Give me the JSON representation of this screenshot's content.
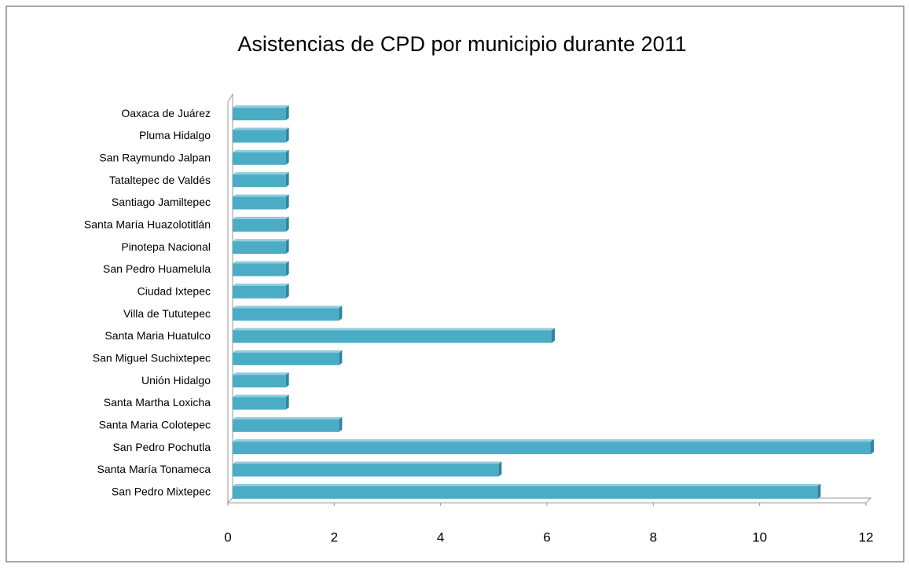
{
  "chart_data": {
    "type": "bar",
    "orientation": "horizontal",
    "title": "Asistencias de CPD por municipio durante 2011",
    "categories": [
      "Oaxaca de Juárez",
      "Pluma Hidalgo",
      "San Raymundo Jalpan",
      "Tataltepec de Valdés",
      "Santiago Jamiltepec",
      "Santa María Huazolotitlán",
      "Pinotepa Nacional",
      "San Pedro Huamelula",
      "Ciudad Ixtepec",
      "Villa de Tututepec",
      "Santa Maria Huatulco",
      "San Miguel Suchixtepec",
      "Unión Hidalgo",
      "Santa Martha Loxicha",
      "Santa Maria Colotepec",
      "San Pedro Pochutla",
      "Santa María Tonameca",
      "San Pedro Mixtepec"
    ],
    "values": [
      1,
      1,
      1,
      1,
      1,
      1,
      1,
      1,
      1,
      2,
      6,
      2,
      1,
      1,
      2,
      12,
      5,
      11
    ],
    "color": "#4bacc6",
    "xlim": [
      0,
      12
    ],
    "xticks": [
      0,
      2,
      4,
      6,
      8,
      10,
      12
    ],
    "grid": false
  }
}
